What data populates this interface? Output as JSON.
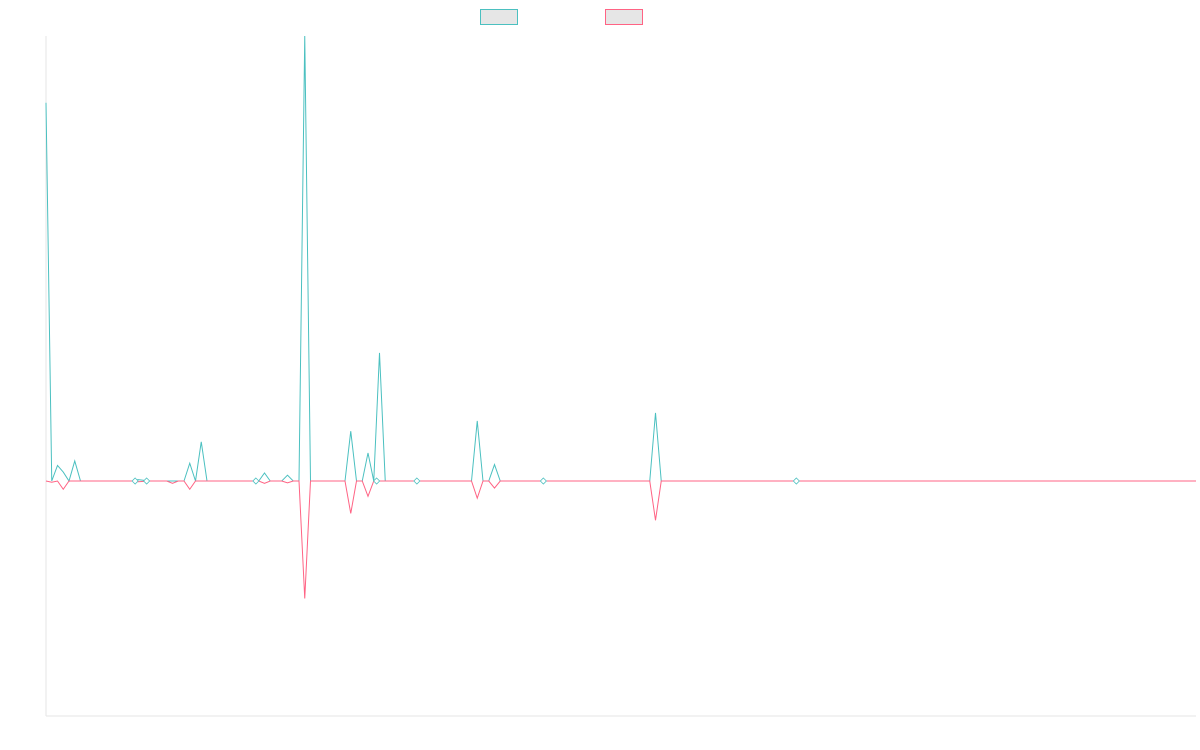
{
  "chart_data": {
    "type": "line",
    "title": "",
    "xlabel": "",
    "ylabel": "",
    "ylim": [
      -1,
      1
    ],
    "grid": false,
    "legend_position": "top-center",
    "x_count": 201,
    "series": [
      {
        "label": "",
        "color": "#4bc0c0",
        "points": [
          [
            0,
            0.85
          ],
          [
            1,
            0.0
          ],
          [
            2,
            0.035
          ],
          [
            3,
            0.02
          ],
          [
            4,
            0.0
          ],
          [
            5,
            0.045
          ],
          [
            6,
            0.0
          ],
          [
            15,
            0.0
          ],
          [
            16,
            0.003
          ],
          [
            18,
            0.0
          ],
          [
            21,
            0.0
          ],
          [
            22,
            0.0
          ],
          [
            23,
            0.0
          ],
          [
            24,
            0.0
          ],
          [
            25,
            0.04
          ],
          [
            26,
            0.0
          ],
          [
            27,
            0.088
          ],
          [
            28,
            0.0
          ],
          [
            37,
            0.0
          ],
          [
            38,
            0.018
          ],
          [
            39,
            0.0
          ],
          [
            41,
            0.0
          ],
          [
            42,
            0.013
          ],
          [
            43,
            0.0
          ],
          [
            44,
            0.0
          ],
          [
            45,
            1.0
          ],
          [
            46,
            0.0
          ],
          [
            52,
            0.0
          ],
          [
            53,
            0.112
          ],
          [
            54,
            0.0
          ],
          [
            55,
            0.0
          ],
          [
            56,
            0.063
          ],
          [
            57,
            0.0
          ],
          [
            58,
            0.288
          ],
          [
            59,
            0.0
          ],
          [
            74,
            0.0
          ],
          [
            75,
            0.135
          ],
          [
            76,
            0.0
          ],
          [
            77,
            0.0
          ],
          [
            78,
            0.037
          ],
          [
            79,
            0.0
          ],
          [
            105,
            0.0
          ],
          [
            106,
            0.153
          ],
          [
            107,
            0.0
          ],
          [
            200,
            0.0
          ]
        ]
      },
      {
        "label": "",
        "color": "#ff6384",
        "points": [
          [
            0,
            0.0
          ],
          [
            1,
            -0.005
          ],
          [
            2,
            0.0
          ],
          [
            3,
            -0.035
          ],
          [
            4,
            0.0
          ],
          [
            15,
            0.0
          ],
          [
            16,
            -0.003
          ],
          [
            18,
            0.0
          ],
          [
            21,
            0.0
          ],
          [
            22,
            -0.01
          ],
          [
            23,
            0.0
          ],
          [
            24,
            0.0
          ],
          [
            25,
            -0.035
          ],
          [
            26,
            0.0
          ],
          [
            37,
            0.0
          ],
          [
            38,
            -0.01
          ],
          [
            39,
            0.0
          ],
          [
            41,
            0.0
          ],
          [
            42,
            -0.008
          ],
          [
            43,
            0.0
          ],
          [
            44,
            0.0
          ],
          [
            45,
            -0.5
          ],
          [
            46,
            0.0
          ],
          [
            52,
            0.0
          ],
          [
            53,
            -0.138
          ],
          [
            54,
            0.0
          ],
          [
            55,
            0.0
          ],
          [
            56,
            -0.065
          ],
          [
            57,
            0.0
          ],
          [
            74,
            0.0
          ],
          [
            75,
            -0.073
          ],
          [
            76,
            0.0
          ],
          [
            77,
            0.0
          ],
          [
            78,
            -0.03
          ],
          [
            79,
            0.0
          ],
          [
            105,
            0.0
          ],
          [
            106,
            -0.167
          ],
          [
            107,
            0.0
          ],
          [
            200,
            0.0
          ]
        ]
      }
    ],
    "markers": [
      {
        "x": 15.5,
        "series": "both"
      },
      {
        "x": 17.5,
        "series": "both"
      },
      {
        "x": 36.5,
        "series": "both"
      },
      {
        "x": 57.5,
        "series": "both"
      },
      {
        "x": 64.5,
        "series": "both"
      },
      {
        "x": 86.5,
        "series": "both"
      },
      {
        "x": 130.5,
        "series": "both"
      }
    ]
  }
}
